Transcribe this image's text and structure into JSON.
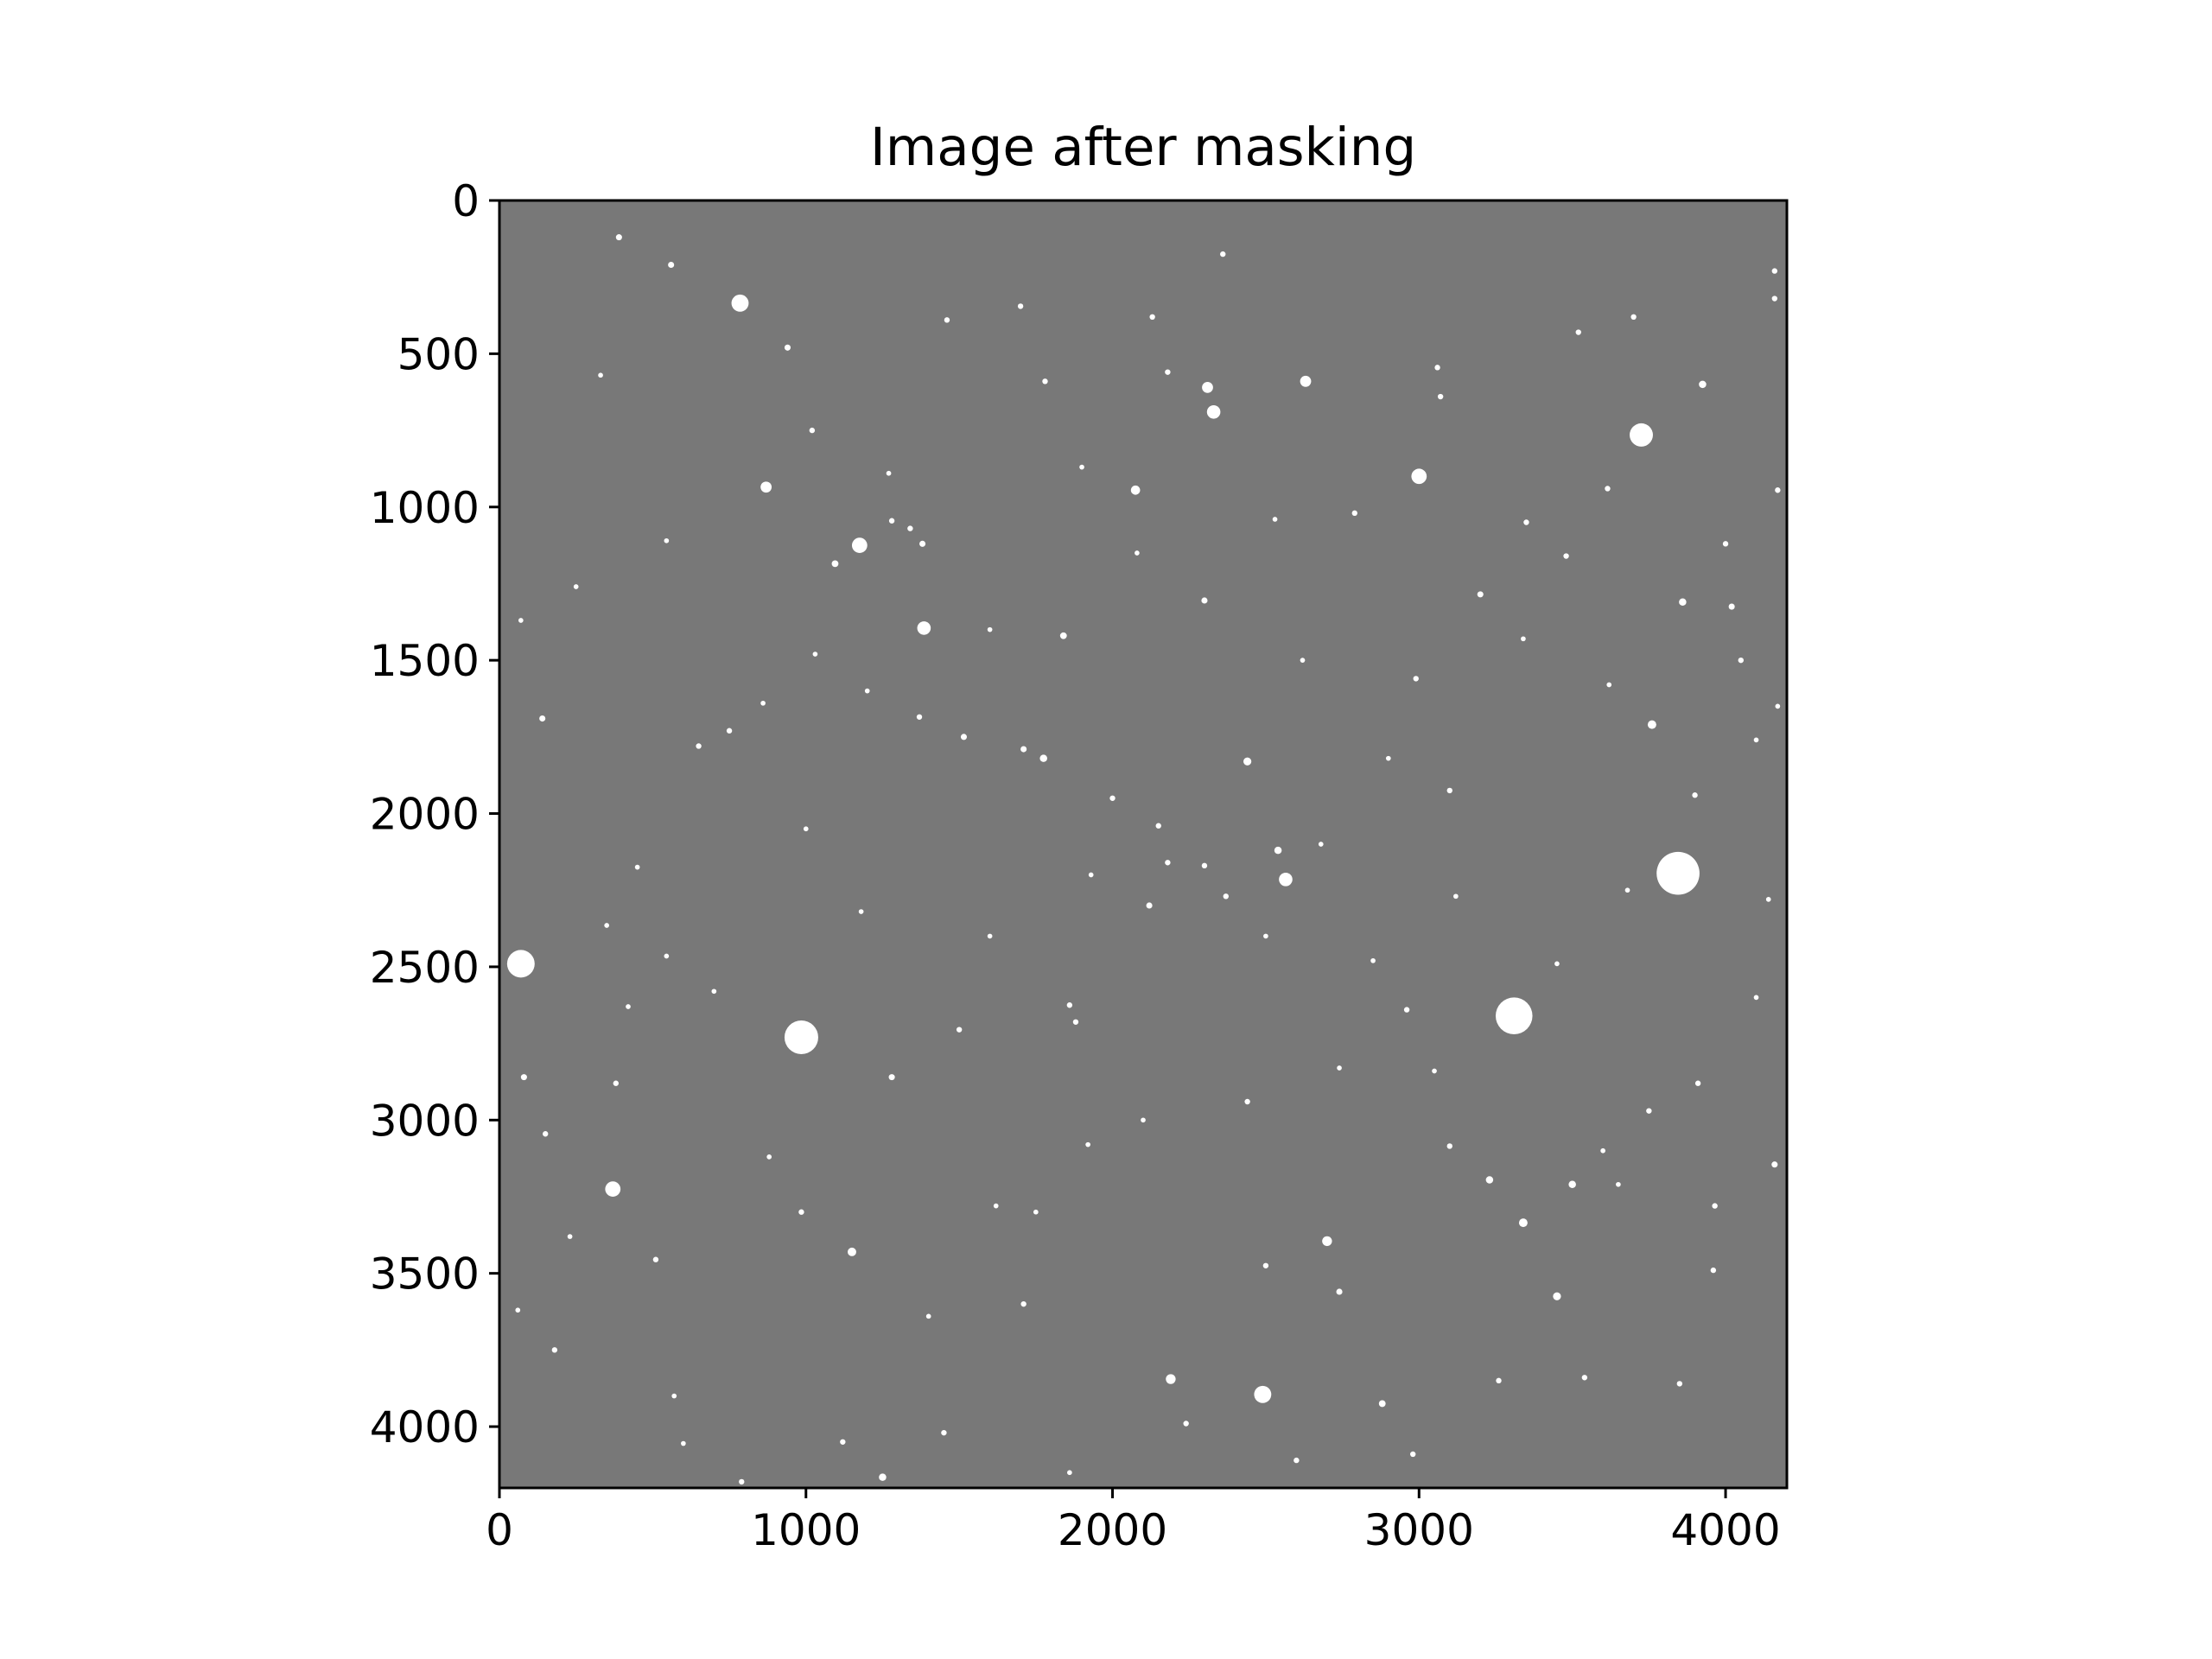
{
  "chart_data": {
    "type": "heatmap",
    "title": "Image after masking",
    "xlabel": "",
    "ylabel": "",
    "xlim": [
      0,
      4200
    ],
    "ylim": [
      4200,
      0
    ],
    "x_ticks": [
      0,
      1000,
      2000,
      3000,
      4000
    ],
    "y_ticks": [
      0,
      500,
      1000,
      1500,
      2000,
      2500,
      3000,
      3500,
      4000
    ],
    "grid": false,
    "colormap": "gray",
    "background_color": "#787878",
    "source_color": "#ffffff",
    "sources": [
      [
        70,
        2490,
        45
      ],
      [
        985,
        2730,
        55
      ],
      [
        3845,
        2195,
        70
      ],
      [
        3310,
        2660,
        60
      ],
      [
        785,
        335,
        28
      ],
      [
        370,
        3225,
        25
      ],
      [
        2490,
        3895,
        28
      ],
      [
        1175,
        1125,
        25
      ],
      [
        3725,
        765,
        38
      ],
      [
        1385,
        1395,
        22
      ],
      [
        2565,
        2215,
        22
      ],
      [
        2330,
        690,
        22
      ],
      [
        3000,
        900,
        25
      ],
      [
        870,
        935,
        18
      ],
      [
        2310,
        610,
        18
      ],
      [
        2630,
        590,
        18
      ],
      [
        2075,
        945,
        15
      ],
      [
        3925,
        600,
        12
      ],
      [
        2190,
        3845,
        16
      ],
      [
        2700,
        3395,
        16
      ],
      [
        1150,
        3430,
        14
      ],
      [
        3340,
        3335,
        14
      ],
      [
        3230,
        3195,
        12
      ],
      [
        3500,
        3210,
        12
      ],
      [
        3450,
        3575,
        13
      ],
      [
        3860,
        1310,
        12
      ],
      [
        3760,
        1710,
        14
      ],
      [
        2440,
        1830,
        13
      ],
      [
        2540,
        2120,
        12
      ],
      [
        1380,
        1120,
        10
      ],
      [
        1095,
        1185,
        11
      ],
      [
        1840,
        1420,
        11
      ],
      [
        2300,
        1305,
        10
      ],
      [
        1775,
        1820,
        12
      ],
      [
        1515,
        1750,
        10
      ],
      [
        1250,
        4165,
        12
      ],
      [
        2880,
        3925,
        11
      ],
      [
        380,
        2880,
        9
      ],
      [
        80,
        2860,
        10
      ],
      [
        150,
        3045,
        9
      ],
      [
        545,
        2465,
        8
      ],
      [
        450,
        2175,
        8
      ],
      [
        350,
        2365,
        8
      ],
      [
        140,
        1690,
        10
      ],
      [
        510,
        3455,
        9
      ],
      [
        985,
        3300,
        9
      ],
      [
        1280,
        2860,
        10
      ],
      [
        1500,
        2705,
        9
      ],
      [
        1860,
        2625,
        9
      ],
      [
        1880,
        2680,
        9
      ],
      [
        2120,
        2300,
        10
      ],
      [
        2150,
        2040,
        9
      ],
      [
        2300,
        2170,
        9
      ],
      [
        2370,
        2270,
        9
      ],
      [
        2180,
        2160,
        9
      ],
      [
        2240,
        3990,
        9
      ],
      [
        2440,
        2940,
        9
      ],
      [
        2500,
        3475,
        9
      ],
      [
        2740,
        3560,
        10
      ],
      [
        2960,
        2640,
        9
      ],
      [
        3100,
        3085,
        9
      ],
      [
        3750,
        2970,
        9
      ],
      [
        3910,
        2880,
        9
      ],
      [
        3965,
        3280,
        9
      ],
      [
        4160,
        3145,
        10
      ],
      [
        3200,
        1285,
        10
      ],
      [
        3060,
        545,
        9
      ],
      [
        3070,
        640,
        9
      ],
      [
        3615,
        940,
        9
      ],
      [
        4020,
        1325,
        10
      ],
      [
        4170,
        945,
        9
      ],
      [
        4160,
        230,
        9
      ],
      [
        4160,
        320,
        9
      ],
      [
        3100,
        1925,
        9
      ],
      [
        2990,
        1560,
        9
      ],
      [
        2530,
        1040,
        8
      ],
      [
        2180,
        560,
        9
      ],
      [
        1710,
        1790,
        10
      ],
      [
        2000,
        1950,
        9
      ],
      [
        1370,
        1685,
        9
      ],
      [
        1280,
        1045,
        9
      ],
      [
        1340,
        1070,
        9
      ],
      [
        1030,
        1480,
        8
      ],
      [
        750,
        1730,
        9
      ],
      [
        650,
        1780,
        9
      ],
      [
        545,
        1110,
        8
      ],
      [
        330,
        570,
        8
      ],
      [
        70,
        1370,
        8
      ],
      [
        560,
        210,
        10
      ],
      [
        390,
        120,
        10
      ],
      [
        940,
        480,
        10
      ],
      [
        1020,
        750,
        9
      ],
      [
        1700,
        345,
        9
      ],
      [
        1780,
        590,
        9
      ],
      [
        1460,
        390,
        9
      ],
      [
        1270,
        890,
        8
      ],
      [
        2130,
        380,
        9
      ],
      [
        2360,
        175,
        9
      ],
      [
        2620,
        1500,
        8
      ],
      [
        2790,
        1020,
        9
      ],
      [
        3350,
        1050,
        9
      ],
      [
        3480,
        1160,
        9
      ],
      [
        3700,
        380,
        9
      ],
      [
        3520,
        430,
        9
      ],
      [
        3540,
        3840,
        9
      ],
      [
        3600,
        3100,
        8
      ],
      [
        3650,
        3210,
        8
      ],
      [
        3260,
        3850,
        9
      ],
      [
        2980,
        4090,
        9
      ],
      [
        2600,
        4110,
        9
      ],
      [
        1860,
        4150,
        8
      ],
      [
        1710,
        3600,
        9
      ],
      [
        1120,
        4050,
        9
      ],
      [
        790,
        4180,
        9
      ],
      [
        570,
        3900,
        8
      ],
      [
        180,
        3750,
        9
      ],
      [
        60,
        3620,
        8
      ],
      [
        600,
        4055,
        8
      ],
      [
        1450,
        4020,
        9
      ],
      [
        1750,
        3300,
        8
      ],
      [
        1920,
        3080,
        8
      ],
      [
        3850,
        3860,
        9
      ],
      [
        3960,
        3490,
        9
      ],
      [
        4100,
        2600,
        8
      ],
      [
        3680,
        2250,
        8
      ],
      [
        3900,
        1940,
        9
      ],
      [
        3620,
        1580,
        8
      ],
      [
        3340,
        1430,
        8
      ],
      [
        4050,
        1500,
        9
      ],
      [
        4000,
        1120,
        9
      ],
      [
        1900,
        870,
        8
      ],
      [
        2080,
        1150,
        8
      ],
      [
        1600,
        1400,
        8
      ],
      [
        860,
        1640,
        8
      ],
      [
        1200,
        1600,
        8
      ],
      [
        250,
        1260,
        8
      ],
      [
        230,
        3380,
        8
      ],
      [
        880,
        3120,
        8
      ],
      [
        1400,
        3640,
        8
      ],
      [
        1620,
        3280,
        8
      ],
      [
        2100,
        3000,
        8
      ],
      [
        2740,
        2830,
        8
      ],
      [
        3050,
        2840,
        8
      ],
      [
        3450,
        2490,
        8
      ],
      [
        4140,
        2280,
        8
      ],
      [
        4100,
        1760,
        8
      ],
      [
        4170,
        1650,
        8
      ],
      [
        3120,
        2270,
        8
      ],
      [
        2850,
        2480,
        8
      ],
      [
        2500,
        2400,
        8
      ],
      [
        1930,
        2200,
        8
      ],
      [
        1600,
        2400,
        8
      ],
      [
        1180,
        2320,
        8
      ],
      [
        700,
        2580,
        8
      ],
      [
        420,
        2630,
        8
      ],
      [
        1000,
        2050,
        8
      ],
      [
        2680,
        2100,
        8
      ],
      [
        2900,
        1820,
        8
      ]
    ]
  }
}
